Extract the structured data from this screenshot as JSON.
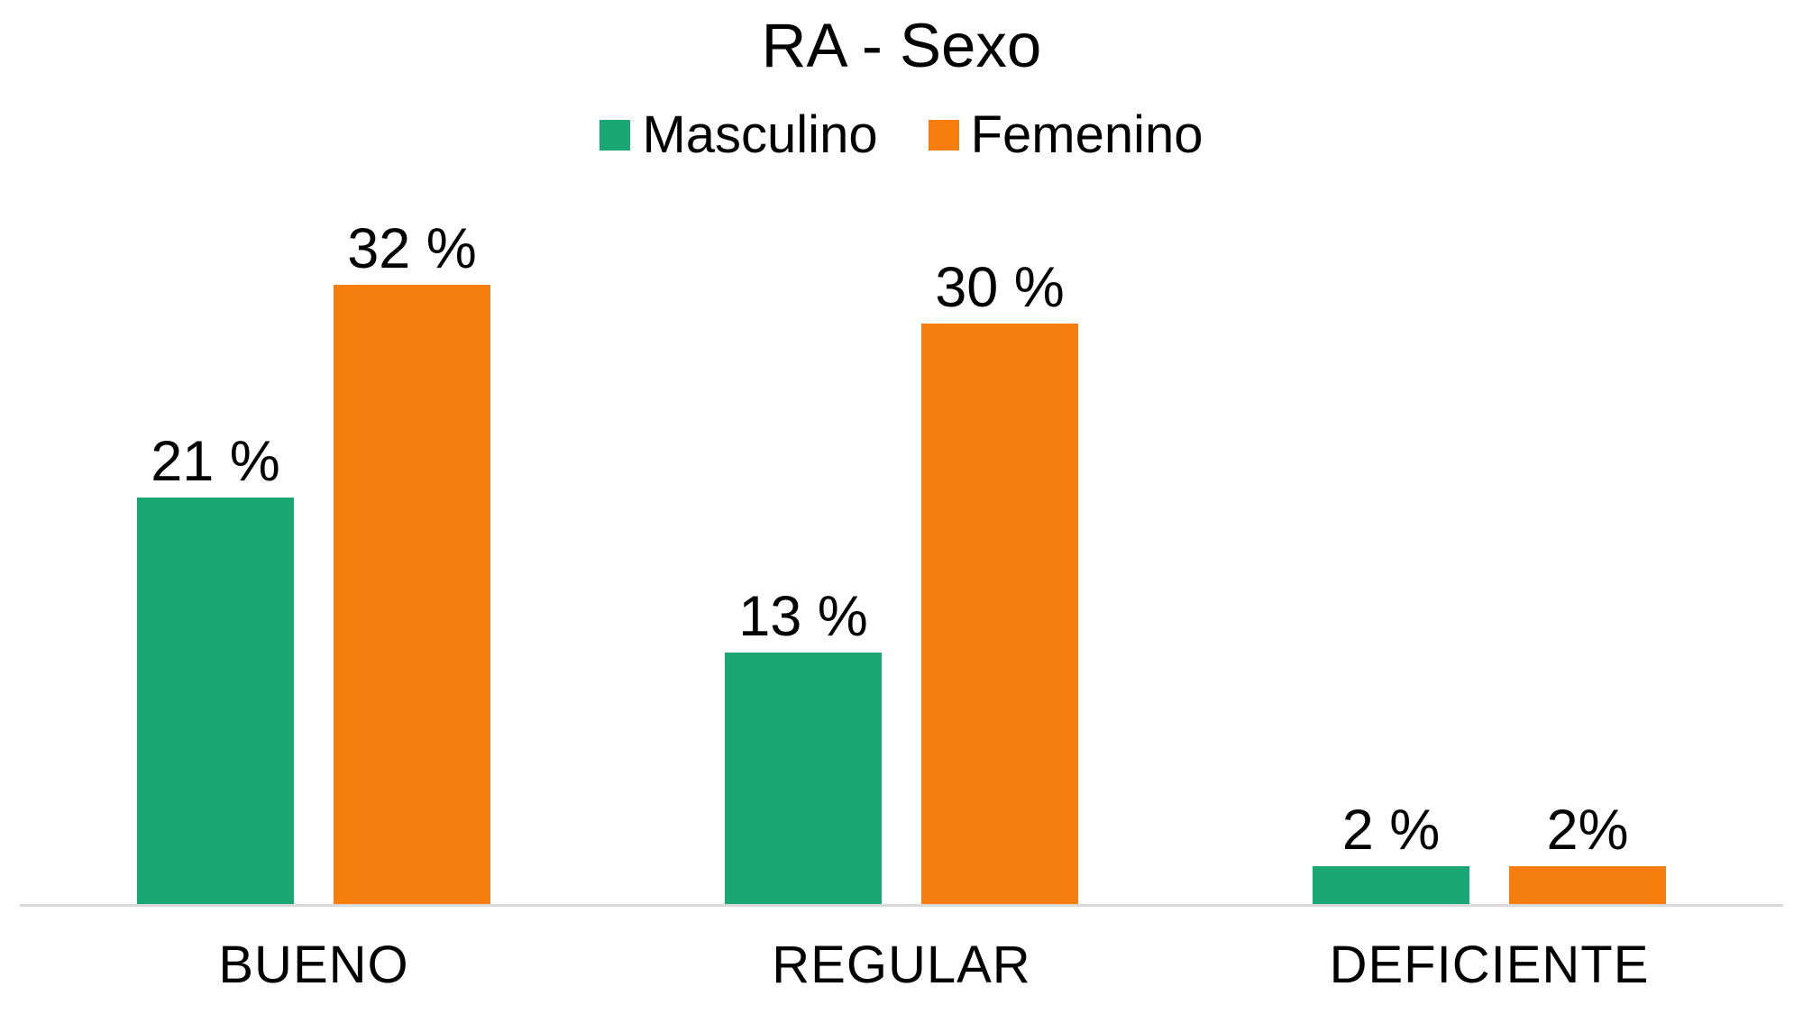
{
  "chart_data": {
    "type": "bar",
    "title": "RA - Sexo",
    "categories": [
      "BUENO",
      "REGULAR",
      "DEFICIENTE"
    ],
    "series": [
      {
        "name": "Masculino",
        "color": "#1AA774",
        "values": [
          21,
          13,
          2
        ],
        "data_labels": [
          "21 %",
          "13 %",
          "2 %"
        ]
      },
      {
        "name": "Femenino",
        "color": "#F57E0E",
        "values": [
          32,
          30,
          2
        ],
        "data_labels": [
          "32 %",
          "30 %",
          "2%"
        ]
      }
    ],
    "xlabel": "",
    "ylabel": "",
    "y_axis_visible": false,
    "grid": false,
    "legend_position": "top",
    "baseline_color": "#D9D9D9",
    "text_color": "#000000",
    "background": "#FFFFFF"
  }
}
